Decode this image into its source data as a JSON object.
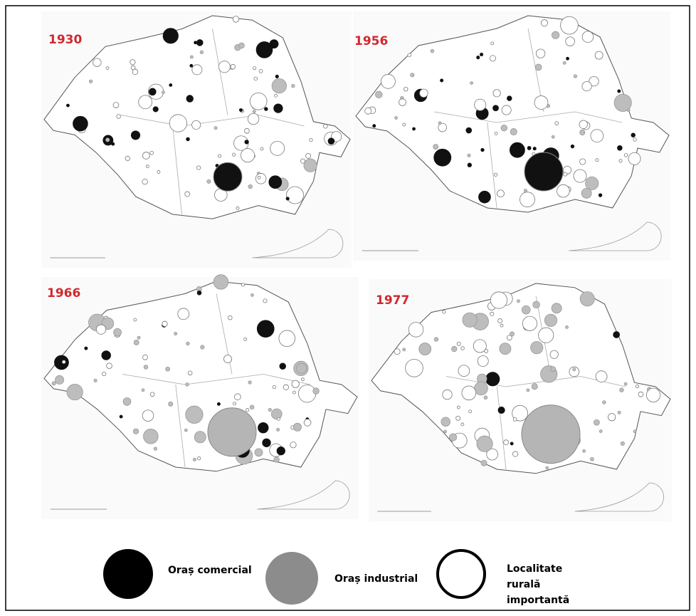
{
  "panels": [
    {
      "label": "1930"
    },
    {
      "label": "1956"
    },
    {
      "label": "1966"
    },
    {
      "label": "1977"
    }
  ],
  "legend": [
    {
      "label": "Oraș comercial"
    },
    {
      "label": "Oraș industrial"
    },
    {
      "label": "Localitate rurală importantă"
    }
  ]
}
